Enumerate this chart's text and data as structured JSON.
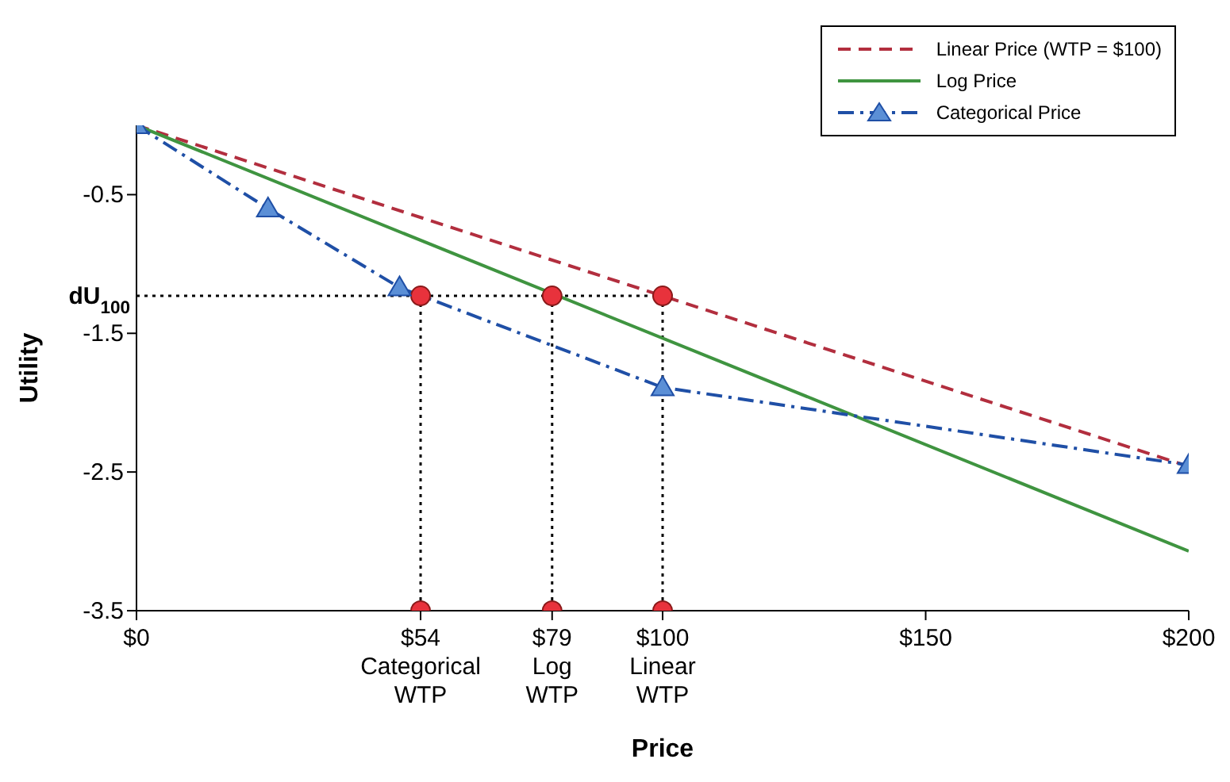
{
  "chart_data": {
    "type": "line",
    "xlabel": "Price",
    "ylabel": "Utility",
    "legend": "top right",
    "xlim": [
      0,
      200
    ],
    "ylim": [
      -3.5,
      0
    ],
    "xticks": [
      {
        "value": 0,
        "label": "$0"
      },
      {
        "value": 54,
        "label": "$54\nCategorical\nWTP"
      },
      {
        "value": 79,
        "label": "$79\nLog\nWTP"
      },
      {
        "value": 100,
        "label": "$100\nLinear\nWTP"
      },
      {
        "value": 150,
        "label": "$150"
      },
      {
        "value": 200,
        "label": "$200"
      }
    ],
    "yticks": [
      -0.5,
      -1.5,
      -2.5,
      -3.5
    ],
    "annotations": [
      {
        "text": "dU$_{100}$",
        "x": 0,
        "y": -1.23
      }
    ],
    "series": [
      {
        "color": "#000000",
        "line_style": "dotted",
        "marker": "none",
        "x": [
          0,
          100
        ],
        "values": [
          -1.23,
          -1.23
        ]
      },
      {
        "color": "#000000",
        "line_style": "dotted",
        "marker": "none",
        "x": [
          54,
          54
        ],
        "values": [
          -1.23,
          -3.5
        ]
      },
      {
        "color": "#000000",
        "line_style": "dotted",
        "marker": "none",
        "x": [
          79,
          79
        ],
        "values": [
          -1.23,
          -3.5
        ]
      },
      {
        "color": "#000000",
        "line_style": "dotted",
        "marker": "none",
        "x": [
          100,
          100
        ],
        "values": [
          -1.23,
          -3.5
        ]
      },
      {
        "name": "Linear Price (WTP = $100)",
        "color": "#b22e3e",
        "line_style": "dashed",
        "marker": "none",
        "x": [
          0,
          200
        ],
        "values": [
          0,
          -2.46
        ]
      },
      {
        "name": "Log Price",
        "color": "#3f9440",
        "line_style": "solid",
        "marker": "none",
        "x": [
          0,
          200
        ],
        "values": [
          0,
          -3.07
        ]
      },
      {
        "name": "Categorical Price",
        "color": "#1f4fa6",
        "line_style": "dashdot",
        "marker": "triangle",
        "x": [
          0,
          25,
          50,
          100,
          200
        ],
        "values": [
          0,
          -0.6,
          -1.17,
          -1.89,
          -2.45
        ]
      },
      {
        "type": "scatter",
        "color": "#e8323c",
        "marker": "circle",
        "x": [
          54,
          79,
          100,
          54,
          79,
          100
        ],
        "values": [
          -1.23,
          -1.23,
          -1.23,
          -3.5,
          -3.5,
          -3.5
        ]
      }
    ]
  }
}
